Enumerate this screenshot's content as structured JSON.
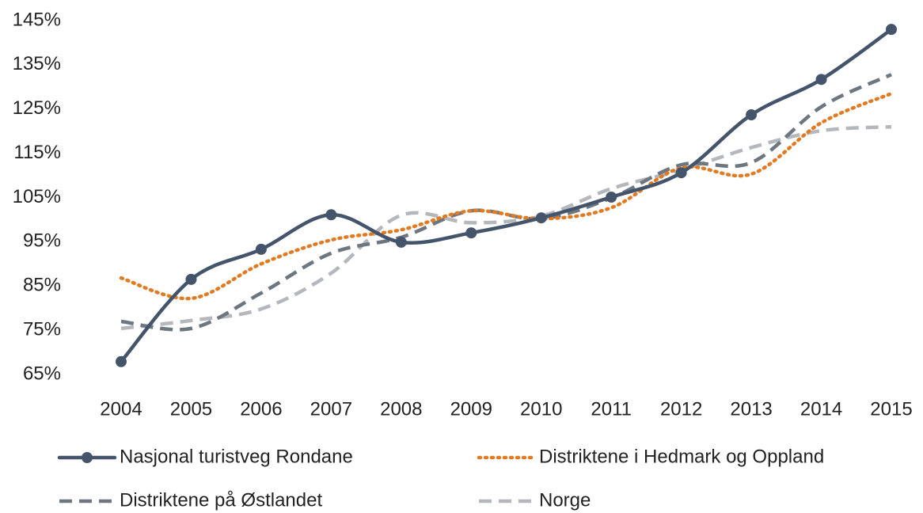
{
  "chart_data": {
    "type": "line",
    "categories": [
      "2004",
      "2005",
      "2006",
      "2007",
      "2008",
      "2009",
      "2010",
      "2011",
      "2012",
      "2013",
      "2014",
      "2015"
    ],
    "ylim": [
      65,
      145
    ],
    "yticks": [
      {
        "value": 65,
        "label": "65%"
      },
      {
        "value": 75,
        "label": "75%"
      },
      {
        "value": 85,
        "label": "85%"
      },
      {
        "value": 95,
        "label": "95%"
      },
      {
        "value": 105,
        "label": "105%"
      },
      {
        "value": 115,
        "label": "115%"
      },
      {
        "value": 125,
        "label": "125%"
      },
      {
        "value": 135,
        "label": "135%"
      },
      {
        "value": 145,
        "label": "145%"
      }
    ],
    "grid": false,
    "legend": "bottom",
    "series": [
      {
        "name": "Nasjonal turistveg Rondane",
        "color": "#44546a",
        "style": "solid",
        "marker": true,
        "values": [
          67.9,
          86.5,
          93.3,
          101.1,
          94.9,
          97.0,
          100.4,
          105.1,
          110.6,
          123.7,
          131.7,
          143.0
        ]
      },
      {
        "name": "Distriktene i Hedmark og Oppland",
        "color": "#e07b24",
        "style": "dotted",
        "marker": false,
        "values": [
          86.8,
          82.2,
          90.0,
          95.4,
          97.7,
          102.0,
          100.2,
          102.7,
          111.7,
          110.3,
          121.9,
          128.5
        ]
      },
      {
        "name": "Distriktene på Østlandet",
        "color": "#6e7680",
        "style": "dashed",
        "marker": false,
        "values": [
          77.0,
          75.4,
          83.4,
          92.4,
          96.0,
          102.0,
          100.2,
          104.9,
          112.4,
          112.9,
          125.5,
          132.8
        ]
      },
      {
        "name": "Norge",
        "color": "#b4b8bd",
        "style": "dashed",
        "marker": false,
        "values": [
          75.4,
          77.2,
          79.8,
          87.9,
          101.0,
          99.3,
          100.8,
          107.0,
          111.2,
          116.3,
          120.1,
          121.0
        ]
      }
    ]
  }
}
